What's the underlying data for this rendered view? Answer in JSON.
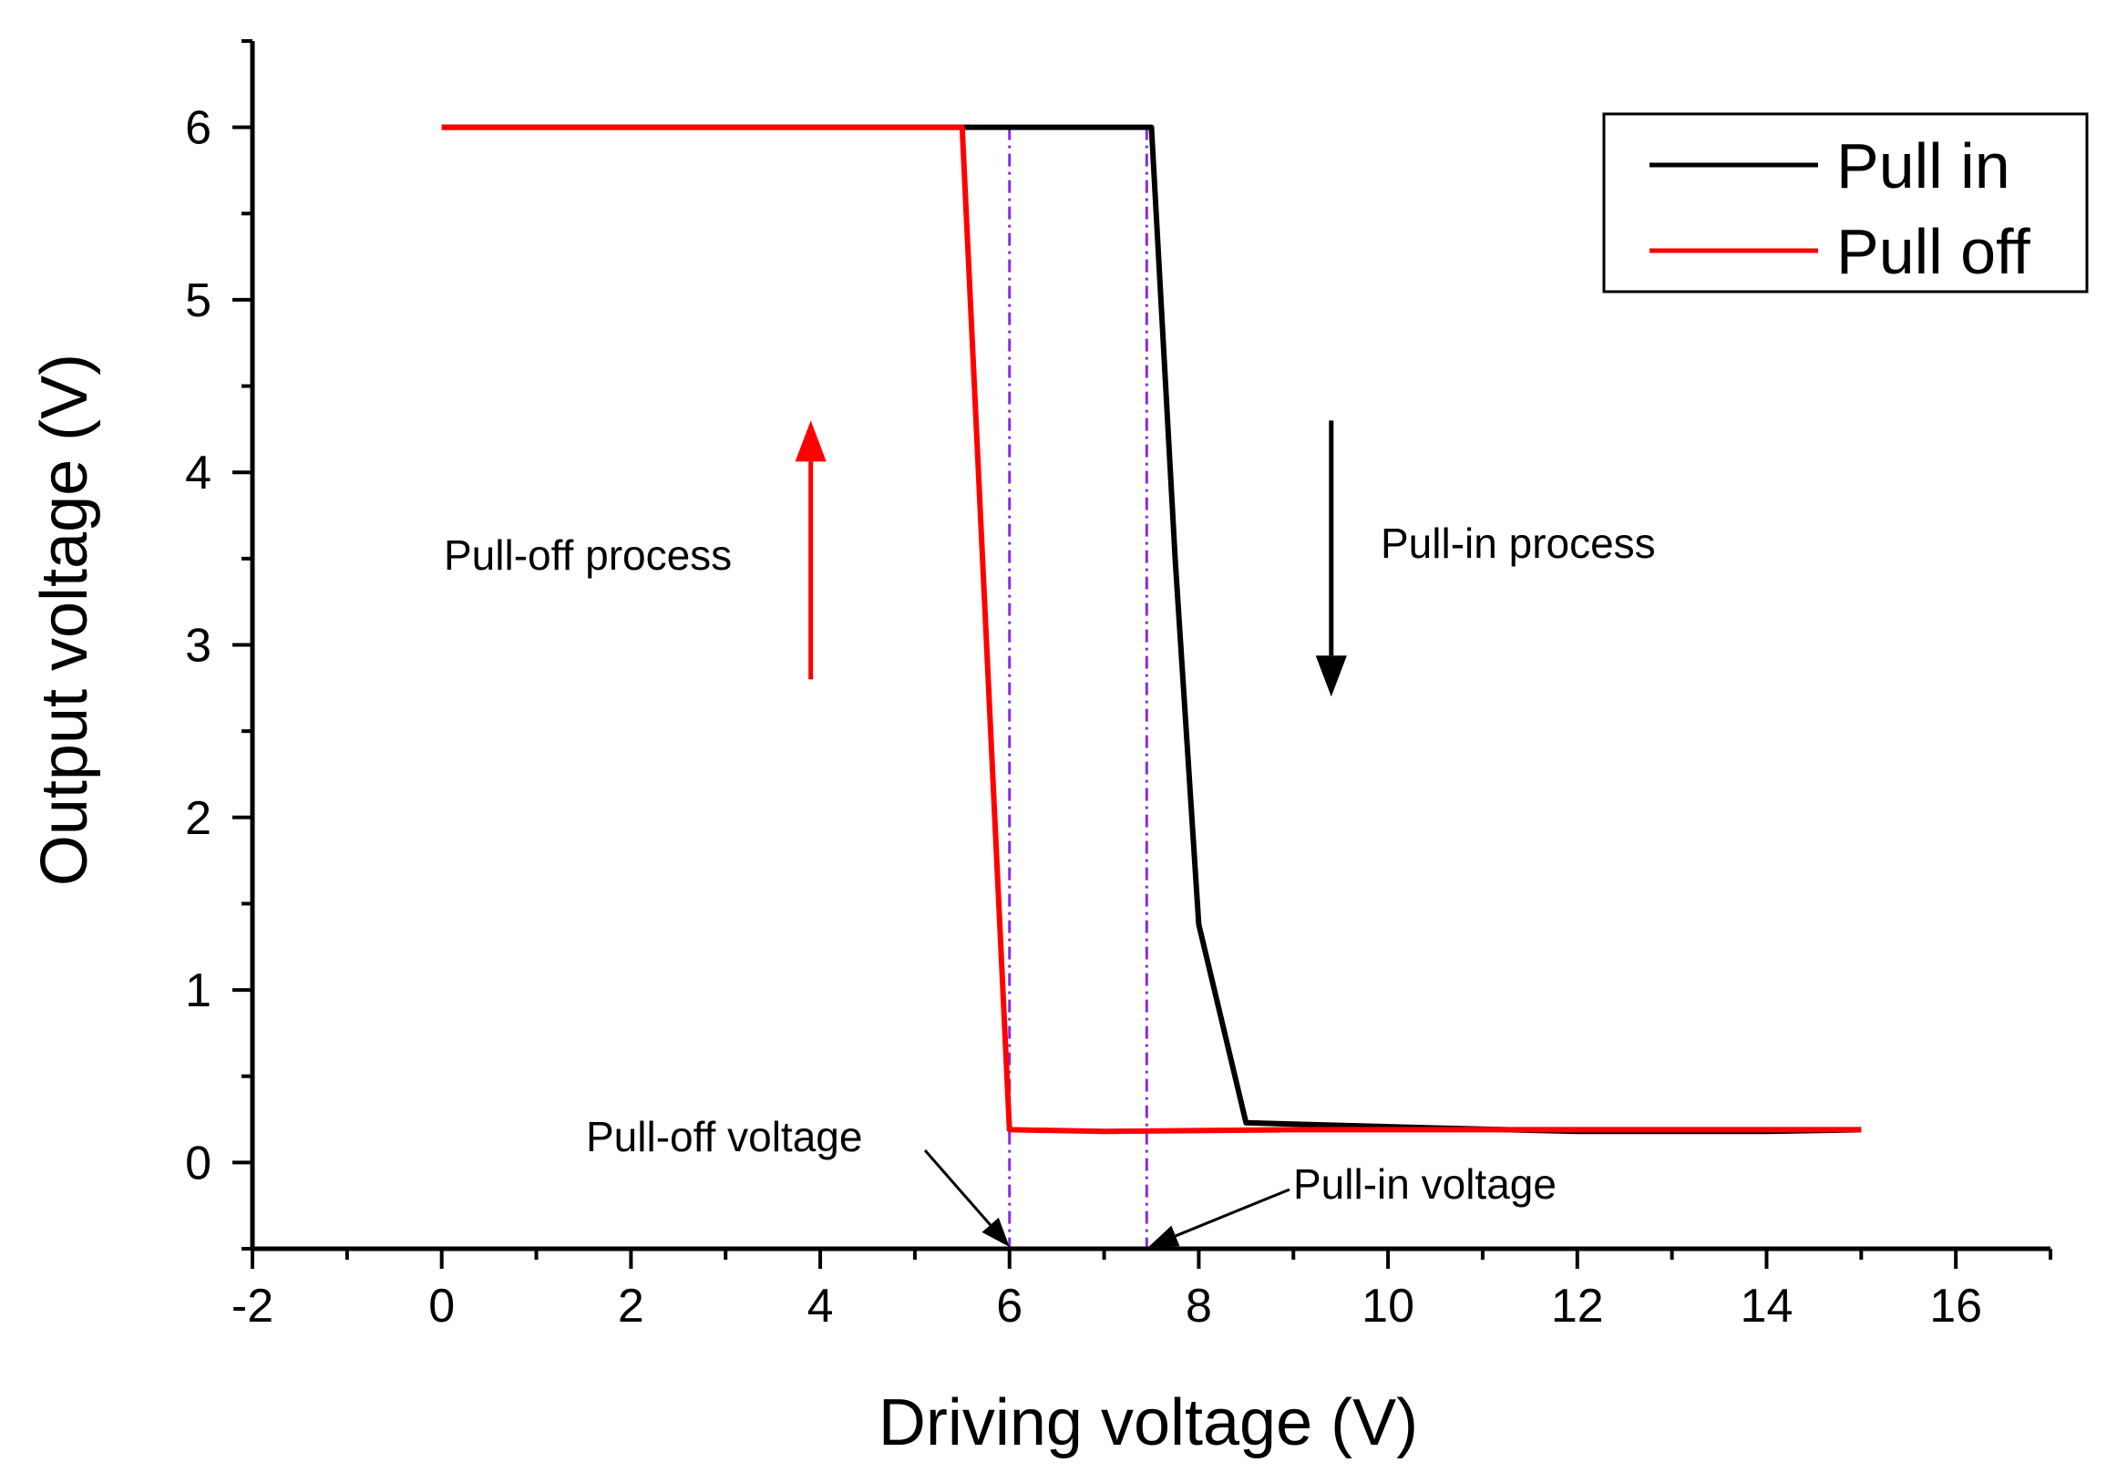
{
  "chart_data": {
    "type": "line",
    "xlabel": "Driving voltage (V)",
    "ylabel": "Output voltage (V)",
    "xlim": [
      -2,
      17
    ],
    "ylim": [
      -0.5,
      6.5
    ],
    "xticks": [
      -2,
      0,
      2,
      4,
      6,
      8,
      10,
      12,
      14,
      16
    ],
    "yticks": [
      0,
      1,
      2,
      3,
      4,
      5,
      6
    ],
    "grid": false,
    "legend_position": "top-right",
    "series": [
      {
        "name": "Pull in",
        "color": "#000000",
        "points": [
          [
            0,
            6
          ],
          [
            5.5,
            6
          ],
          [
            7.5,
            6
          ],
          [
            7.75,
            3.5
          ],
          [
            8.0,
            1.38
          ],
          [
            8.5,
            0.23
          ],
          [
            10.5,
            0.2
          ],
          [
            12.0,
            0.18
          ],
          [
            14.0,
            0.18
          ],
          [
            15.0,
            0.19
          ]
        ]
      },
      {
        "name": "Pull off",
        "color": "#ff0000",
        "points": [
          [
            0,
            6
          ],
          [
            5.5,
            6
          ],
          [
            6.0,
            0.19
          ],
          [
            7.0,
            0.18
          ],
          [
            9.0,
            0.19
          ],
          [
            12.0,
            0.19
          ],
          [
            15.0,
            0.19
          ]
        ]
      }
    ],
    "reference_lines": [
      {
        "x": 6.0,
        "color": "#8a2be2"
      },
      {
        "x": 7.45,
        "color": "#8a2be2"
      }
    ],
    "annotations": {
      "pull_off_process": "Pull-off process",
      "pull_in_process": "Pull-in process",
      "pull_off_voltage": "Pull-off voltage",
      "pull_in_voltage": "Pull-in voltage"
    },
    "process_arrows": [
      {
        "label_key": "pull_off_process",
        "x": 3.9,
        "y_from": 2.8,
        "y_to": 4.3,
        "color": "#ff0000"
      },
      {
        "label_key": "pull_in_process",
        "x": 9.4,
        "y_from": 4.3,
        "y_to": 2.7,
        "color": "#000000"
      }
    ]
  }
}
